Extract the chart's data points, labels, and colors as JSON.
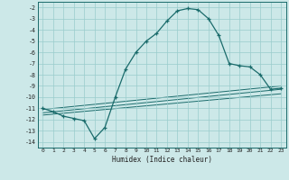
{
  "title": "",
  "xlabel": "Humidex (Indice chaleur)",
  "bg_color": "#cce8e8",
  "grid_color": "#99cccc",
  "line_color": "#1a6b6b",
  "xlim": [
    -0.5,
    23.5
  ],
  "ylim": [
    -14.5,
    -1.5
  ],
  "xticks": [
    0,
    1,
    2,
    3,
    4,
    5,
    6,
    7,
    8,
    9,
    10,
    11,
    12,
    13,
    14,
    15,
    16,
    17,
    18,
    19,
    20,
    21,
    22,
    23
  ],
  "yticks": [
    -2,
    -3,
    -4,
    -5,
    -6,
    -7,
    -8,
    -9,
    -10,
    -11,
    -12,
    -13,
    -14
  ],
  "curve1_x": [
    0,
    1,
    2,
    3,
    4,
    5,
    6,
    7,
    8,
    9,
    10,
    11,
    12,
    13,
    14,
    15,
    16,
    17,
    18,
    19,
    20,
    21,
    22,
    23
  ],
  "curve1_y": [
    -11.0,
    -11.3,
    -11.7,
    -11.9,
    -12.1,
    -13.7,
    -12.7,
    -10.0,
    -7.5,
    -6.0,
    -5.0,
    -4.3,
    -3.2,
    -2.3,
    -2.1,
    -2.2,
    -3.0,
    -4.5,
    -7.0,
    -7.2,
    -7.3,
    -8.0,
    -9.3,
    -9.2
  ],
  "line1_x": [
    0,
    23
  ],
  "line1_y": [
    -11.1,
    -9.0
  ],
  "line2_x": [
    0,
    23
  ],
  "line2_y": [
    -11.4,
    -9.3
  ],
  "line3_x": [
    0,
    23
  ],
  "line3_y": [
    -11.6,
    -9.7
  ]
}
